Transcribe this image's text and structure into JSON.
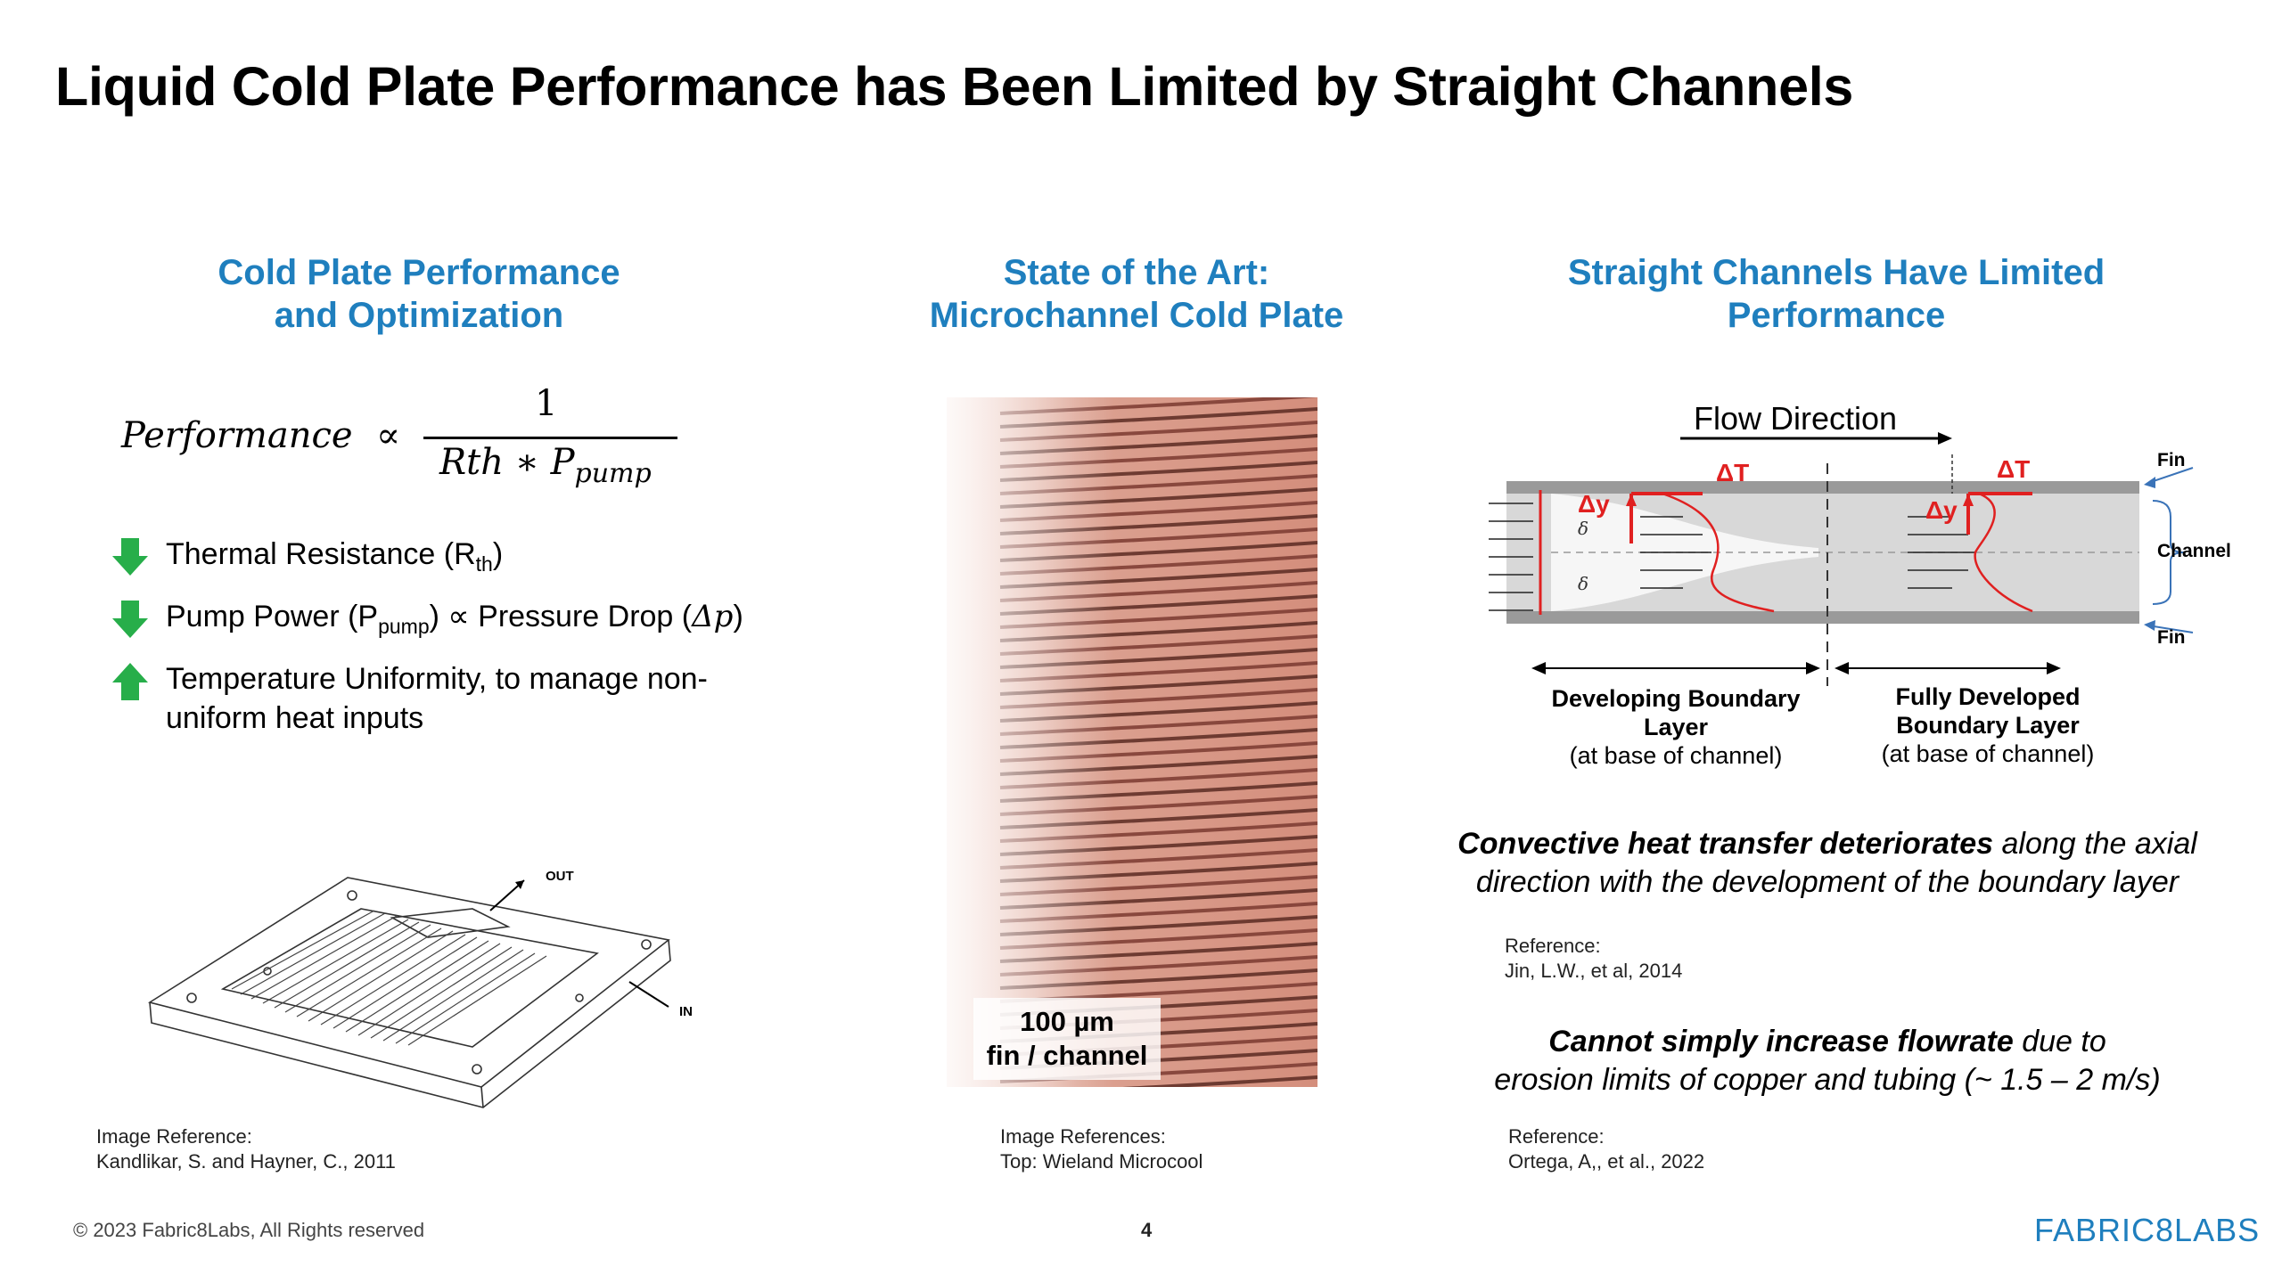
{
  "slide": {
    "title": "Liquid Cold Plate Performance has Been Limited by Straight Channels",
    "page_number": "4",
    "copyright": "© 2023 Fabric8Labs, All Rights reserved",
    "logo": "FABRIC8LABS"
  },
  "left": {
    "heading_line1": "Cold Plate Performance",
    "heading_line2": "and Optimization",
    "formula": {
      "lhs": "Performance",
      "proportional": "∝",
      "numerator": "1",
      "denominator": "Rth ∗ P",
      "denominator_sub": "pump"
    },
    "bullets": [
      {
        "direction": "down",
        "text": "Thermal Resistance (R",
        "sub": "th",
        "after": ")"
      },
      {
        "direction": "down",
        "text": "Pump Power (P",
        "sub": "pump",
        "after": ") ∝ Pressure Drop (",
        "math": "Δp",
        "close": ")"
      },
      {
        "direction": "up",
        "line1": "Temperature Uniformity, to manage non-",
        "line2": "uniform heat inputs"
      }
    ],
    "figure_labels": {
      "out": "OUT",
      "in": "IN"
    },
    "reference_label": "Image Reference:",
    "reference_text": "Kandlikar, S. and Hayner, C., 2011"
  },
  "middle": {
    "heading_line1": "State of the Art:",
    "heading_line2": "Microchannel Cold Plate",
    "image_label_line1": "100 µm",
    "image_label_line2": "fin / channel",
    "reference_label": "Image References:",
    "reference_text": "Top: Wieland Microcool"
  },
  "right": {
    "heading_line1": "Straight Channels Have Limited",
    "heading_line2": "Performance",
    "diagram": {
      "flow_direction": "Flow Direction",
      "fin_top": "Fin",
      "channel": "Channel",
      "fin_bottom": "Fin",
      "delta_t": "ΔT",
      "delta_y": "Δy",
      "delta_symbol": "δ",
      "dev_line1": "Developing Boundary",
      "dev_line2": "Layer",
      "dev_line3": "(at base of channel)",
      "full_line1": "Fully Developed",
      "full_line2": "Boundary Layer",
      "full_line3": "(at base of channel)"
    },
    "statement1_bold": "Convective heat transfer deteriorates",
    "statement1_rest": " along the axial",
    "statement1_line2": "direction with the development of the boundary layer",
    "reference1_label": "Reference:",
    "reference1_text": "Jin, L.W., et al, 2014",
    "statement2_bold": "Cannot simply increase flowrate",
    "statement2_rest": " due to",
    "statement2_line2": "erosion limits of copper and tubing (~ 1.5 – 2 m/s)",
    "reference2_label": "Reference:",
    "reference2_text": "Ortega, A,, et al., 2022"
  },
  "colors": {
    "heading_blue": "#1f7fbe",
    "arrow_green": "#27ae4a",
    "copper": "#d99a88",
    "diagram_red": "#e02020"
  }
}
